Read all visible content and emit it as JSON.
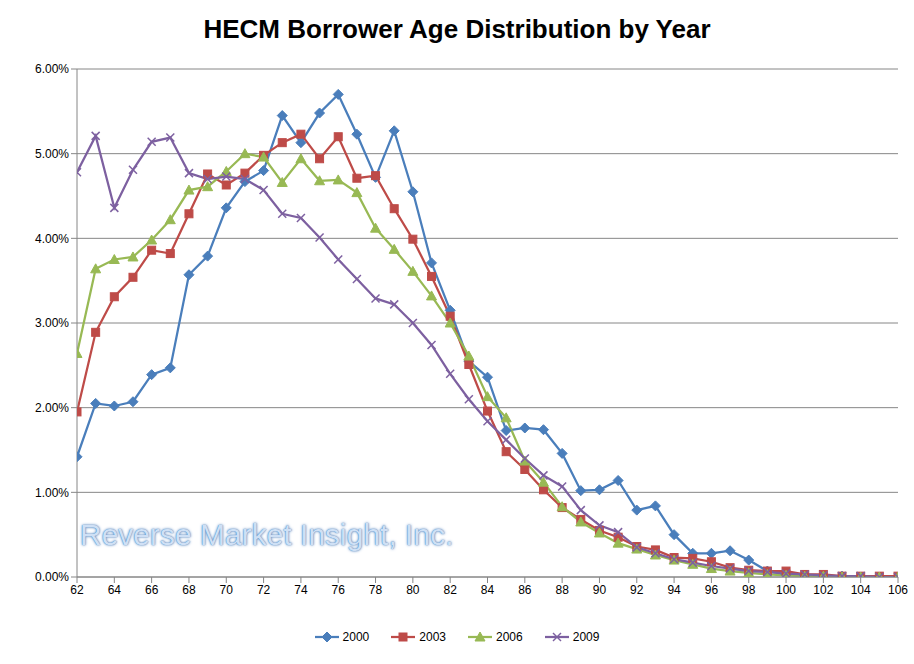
{
  "chart_data": {
    "type": "line",
    "title": "HECM Borrower Age Distribution by Year",
    "annotations": [
      "Reverse Market Insight, Inc."
    ],
    "x": [
      62,
      63,
      64,
      65,
      66,
      67,
      68,
      69,
      70,
      71,
      72,
      73,
      74,
      75,
      76,
      77,
      78,
      79,
      80,
      81,
      82,
      83,
      84,
      85,
      86,
      87,
      88,
      89,
      90,
      91,
      92,
      93,
      94,
      95,
      96,
      97,
      98,
      99,
      100,
      101,
      102,
      103,
      104,
      105,
      106
    ],
    "xlim": [
      62,
      106
    ],
    "xticks": [
      62,
      64,
      66,
      68,
      70,
      72,
      74,
      76,
      78,
      80,
      82,
      84,
      86,
      88,
      90,
      92,
      94,
      96,
      98,
      100,
      102,
      104,
      106
    ],
    "ylim": [
      0,
      6
    ],
    "yticks": [
      {
        "value": 0,
        "label": "0.00%"
      },
      {
        "value": 1,
        "label": "1.00%"
      },
      {
        "value": 2,
        "label": "2.00%"
      },
      {
        "value": 3,
        "label": "3.00%"
      },
      {
        "value": 4,
        "label": "4.00%"
      },
      {
        "value": 5,
        "label": "5.00%"
      },
      {
        "value": 6,
        "label": "6.00%"
      }
    ],
    "grid": true,
    "legend": "bottom",
    "series": [
      {
        "name": "2000",
        "color": "#4a7ebb",
        "marker": "diamond",
        "values": [
          1.42,
          2.05,
          2.02,
          2.07,
          2.39,
          2.47,
          3.57,
          3.79,
          4.36,
          4.67,
          4.8,
          5.45,
          5.13,
          5.48,
          5.7,
          5.23,
          4.72,
          5.27,
          4.55,
          3.71,
          3.15,
          2.55,
          2.36,
          1.73,
          1.76,
          1.74,
          1.46,
          1.02,
          1.03,
          1.14,
          0.79,
          0.84,
          0.5,
          0.28,
          0.28,
          0.31,
          0.2,
          0.07,
          0.03,
          0.02,
          0.01,
          0.01,
          0,
          0,
          0
        ]
      },
      {
        "name": "2003",
        "color": "#be4b48",
        "marker": "square",
        "values": [
          1.95,
          2.89,
          3.31,
          3.54,
          3.86,
          3.82,
          4.29,
          4.76,
          4.63,
          4.77,
          4.98,
          5.13,
          5.23,
          4.94,
          5.2,
          4.71,
          4.74,
          4.35,
          3.99,
          3.55,
          3.08,
          2.51,
          1.96,
          1.48,
          1.27,
          1.03,
          0.82,
          0.68,
          0.55,
          0.47,
          0.36,
          0.32,
          0.23,
          0.22,
          0.18,
          0.11,
          0.08,
          0.07,
          0.07,
          0.03,
          0.03,
          0.01,
          0.01,
          0.01,
          0.01
        ]
      },
      {
        "name": "2006",
        "color": "#98b954",
        "marker": "triangle",
        "values": [
          2.64,
          3.64,
          3.75,
          3.78,
          3.98,
          4.22,
          4.57,
          4.61,
          4.79,
          5.0,
          4.96,
          4.66,
          4.94,
          4.68,
          4.69,
          4.54,
          4.12,
          3.87,
          3.61,
          3.32,
          3.0,
          2.61,
          2.13,
          1.88,
          1.37,
          1.12,
          0.83,
          0.65,
          0.52,
          0.4,
          0.33,
          0.26,
          0.2,
          0.15,
          0.1,
          0.07,
          0.05,
          0.03,
          0.02,
          0.01,
          0.01,
          0,
          0,
          0,
          0
        ]
      },
      {
        "name": "2009",
        "color": "#7d60a0",
        "marker": "x",
        "values": [
          4.78,
          5.21,
          4.36,
          4.81,
          5.14,
          5.19,
          4.77,
          4.7,
          4.73,
          4.7,
          4.57,
          4.29,
          4.24,
          4.01,
          3.75,
          3.52,
          3.29,
          3.22,
          3.0,
          2.74,
          2.4,
          2.1,
          1.84,
          1.62,
          1.4,
          1.2,
          1.07,
          0.79,
          0.61,
          0.53,
          0.35,
          0.28,
          0.21,
          0.17,
          0.13,
          0.1,
          0.07,
          0.06,
          0.04,
          0.03,
          0.02,
          0.01,
          0.01,
          0,
          0
        ]
      }
    ]
  }
}
